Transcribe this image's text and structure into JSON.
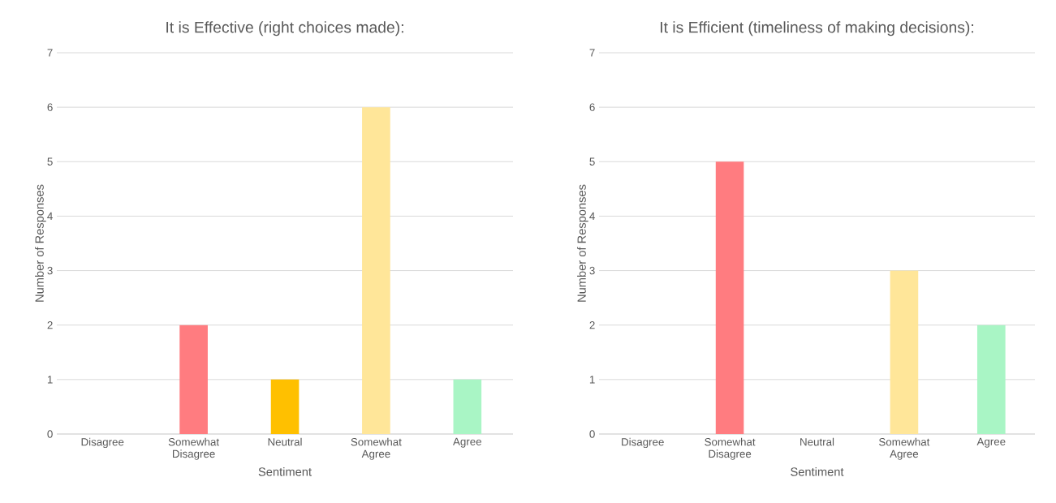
{
  "chart_data": [
    {
      "type": "bar",
      "title": "It is Effective (right choices made):",
      "xlabel": "Sentiment",
      "ylabel": "Number of Responses",
      "categories": [
        "Disagree",
        "Somewhat Disagree",
        "Neutral",
        "Somewhat Agree",
        "Agree"
      ],
      "values": [
        0,
        2,
        1,
        6,
        1
      ],
      "colors": [
        "#ff0000",
        "#ff7c80",
        "#ffc000",
        "#ffe699",
        "#a9f5c5"
      ],
      "ylim": [
        0,
        7
      ],
      "yticks": [
        0,
        1,
        2,
        3,
        4,
        5,
        6,
        7
      ],
      "grid": "y"
    },
    {
      "type": "bar",
      "title": "It is Efficient (timeliness of making decisions):",
      "xlabel": "Sentiment",
      "ylabel": "Number of Responses",
      "categories": [
        "Disagree",
        "Somewhat Disagree",
        "Neutral",
        "Somewhat Agree",
        "Agree"
      ],
      "values": [
        0,
        5,
        0,
        3,
        2
      ],
      "colors": [
        "#ff0000",
        "#ff7c80",
        "#ffc000",
        "#ffe699",
        "#a9f5c5"
      ],
      "ylim": [
        0,
        7
      ],
      "yticks": [
        0,
        1,
        2,
        3,
        4,
        5,
        6,
        7
      ],
      "grid": "y"
    }
  ]
}
